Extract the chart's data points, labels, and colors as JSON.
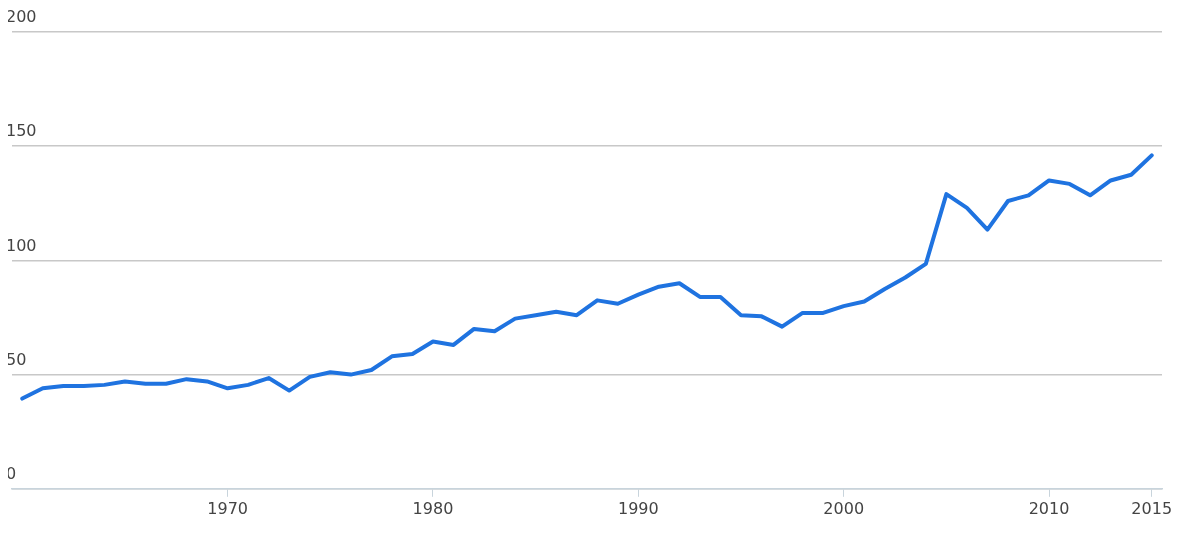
{
  "chart_data": {
    "type": "line",
    "x": [
      1960,
      1961,
      1962,
      1963,
      1964,
      1965,
      1966,
      1967,
      1968,
      1969,
      1970,
      1971,
      1972,
      1973,
      1974,
      1975,
      1976,
      1977,
      1978,
      1979,
      1980,
      1981,
      1982,
      1983,
      1984,
      1985,
      1986,
      1987,
      1988,
      1989,
      1990,
      1991,
      1992,
      1993,
      1994,
      1995,
      1996,
      1997,
      1998,
      1999,
      2000,
      2001,
      2002,
      2003,
      2004,
      2005,
      2006,
      2007,
      2008,
      2009,
      2010,
      2011,
      2012,
      2013,
      2014,
      2015
    ],
    "series": [
      {
        "color": "#1f73e0",
        "values": [
          39.5,
          44,
          45,
          45,
          45.5,
          47,
          46,
          46,
          48,
          47,
          44,
          45.5,
          48.5,
          43,
          49,
          51,
          50,
          52,
          58,
          59,
          64.5,
          63,
          70,
          69,
          74.5,
          76,
          77.5,
          76,
          82.5,
          81,
          85,
          88.5,
          90,
          84,
          84,
          76,
          75.5,
          71,
          77,
          77,
          80,
          82,
          87.5,
          92.5,
          98.5,
          129,
          123,
          113.5,
          126,
          128.5,
          135,
          133.5,
          128.5,
          135,
          137.5,
          146
        ]
      }
    ],
    "xlim": [
      1959.5,
      2015.5
    ],
    "xticks": [
      1970,
      1980,
      1990,
      2000,
      2010,
      2015
    ],
    "ylim": [
      0,
      200
    ],
    "yticks": [
      0,
      50,
      100,
      150,
      200
    ],
    "grid": "y",
    "legend": false,
    "marker": "none",
    "line_style": "solid"
  }
}
